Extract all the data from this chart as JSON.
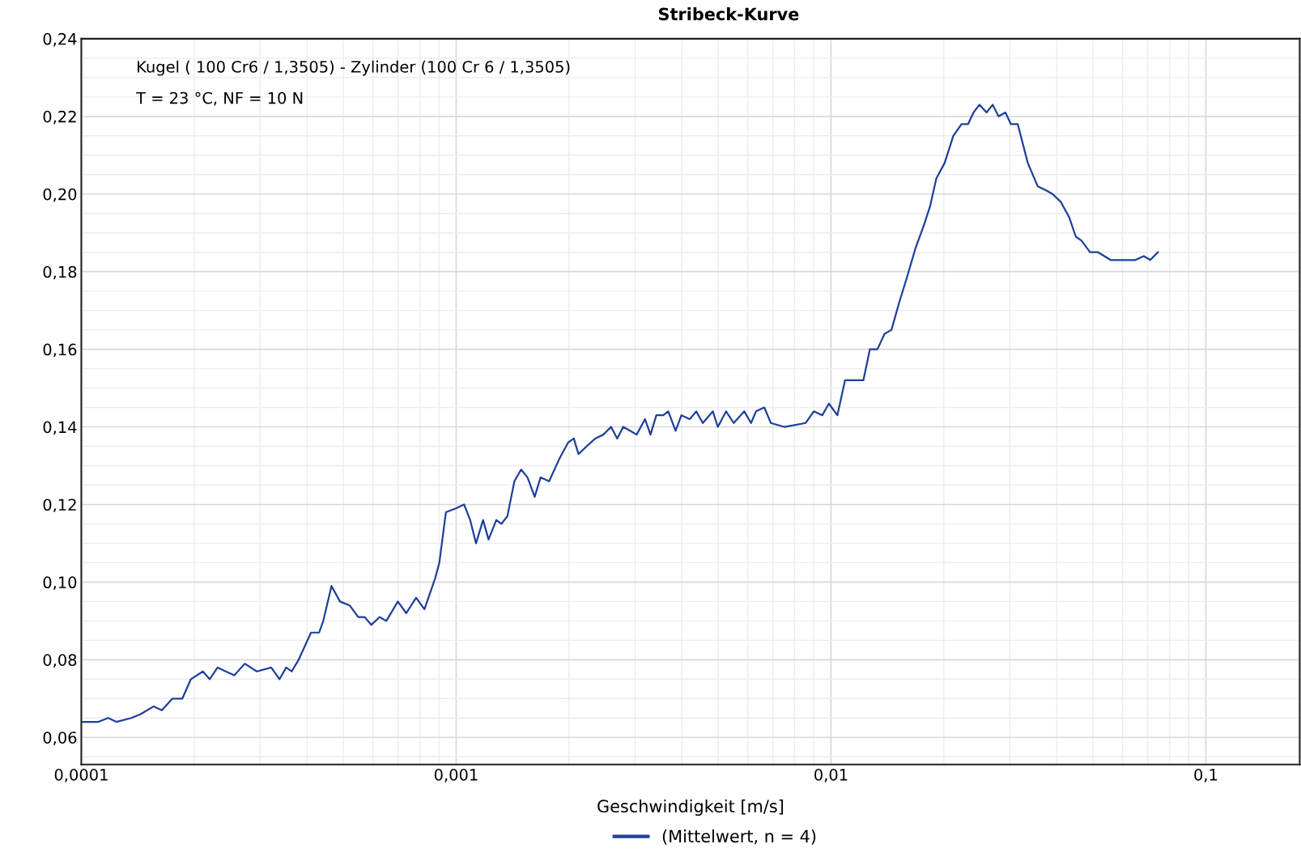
{
  "chart_data": {
    "type": "line",
    "title": "Stribeck-Kurve",
    "xlabel": "Geschwindigkeit [m/s]",
    "annotations": [
      "Kugel ( 100 Cr6 / 1,3505) - Zylinder (100 Cr 6 / 1,3505)",
      "T = 23 °C, NF = 10 N"
    ],
    "log": "x",
    "grid": true,
    "legend": "bottom",
    "marker": "none",
    "line_style": "solid",
    "xlim": [
      0.0001,
      0.178
    ],
    "ylim": [
      0.053,
      0.24
    ],
    "xticks": [
      {
        "value": 0.0001,
        "label": "0,0001"
      },
      {
        "value": 0.001,
        "label": "0,001"
      },
      {
        "value": 0.01,
        "label": "0,01"
      },
      {
        "value": 0.1,
        "label": "0,1"
      }
    ],
    "yticks": [
      {
        "value": 0.06,
        "label": "0,06"
      },
      {
        "value": 0.08,
        "label": "0,08"
      },
      {
        "value": 0.1,
        "label": "0,10"
      },
      {
        "value": 0.12,
        "label": "0,12"
      },
      {
        "value": 0.14,
        "label": "0,14"
      },
      {
        "value": 0.16,
        "label": "0,16"
      },
      {
        "value": 0.18,
        "label": "0,18"
      },
      {
        "value": 0.2,
        "label": "0,20"
      },
      {
        "value": 0.22,
        "label": "0,22"
      },
      {
        "value": 0.24,
        "label": "0,24"
      }
    ],
    "series": [
      {
        "name": "(Mittelwert, n = 4)",
        "color": "#1f3f99",
        "x": [
          0.0001,
          0.000111,
          0.000118,
          0.000124,
          0.000136,
          0.000144,
          0.000156,
          0.000164,
          0.000175,
          0.000186,
          0.000196,
          0.000211,
          0.00022,
          0.000231,
          0.000243,
          0.000256,
          0.000273,
          0.000294,
          0.000321,
          0.000338,
          0.000352,
          0.000364,
          0.00038,
          0.00041,
          0.000431,
          0.000442,
          0.000465,
          0.00049,
          0.00052,
          0.000548,
          0.00057,
          0.000594,
          0.000625,
          0.000651,
          0.000699,
          0.000736,
          0.000782,
          0.000823,
          0.000879,
          0.000902,
          0.000939,
          0.000998,
          0.00105,
          0.00109,
          0.00113,
          0.00118,
          0.00122,
          0.00128,
          0.00132,
          0.00137,
          0.00143,
          0.00149,
          0.00155,
          0.00162,
          0.00168,
          0.00177,
          0.00189,
          0.00199,
          0.00206,
          0.00212,
          0.00223,
          0.00235,
          0.00247,
          0.00259,
          0.00269,
          0.00279,
          0.00291,
          0.00303,
          0.00319,
          0.0033,
          0.00342,
          0.00357,
          0.00368,
          0.00385,
          0.00399,
          0.0042,
          0.00437,
          0.00455,
          0.00484,
          0.00499,
          0.00525,
          0.0055,
          0.00587,
          0.00612,
          0.00631,
          0.00664,
          0.00691,
          0.0075,
          0.00856,
          0.009,
          0.00948,
          0.00987,
          0.0104,
          0.0109,
          0.0115,
          0.0122,
          0.0127,
          0.0133,
          0.0139,
          0.0145,
          0.0152,
          0.016,
          0.0168,
          0.0177,
          0.0184,
          0.0191,
          0.0201,
          0.0212,
          0.0223,
          0.0232,
          0.024,
          0.0249,
          0.026,
          0.027,
          0.028,
          0.0292,
          0.0302,
          0.0315,
          0.0335,
          0.0356,
          0.0374,
          0.039,
          0.041,
          0.0432,
          0.045,
          0.0466,
          0.0491,
          0.0516,
          0.0557,
          0.0601,
          0.0649,
          0.0683,
          0.0711,
          0.0745
        ],
        "values": [
          0.064,
          0.064,
          0.065,
          0.064,
          0.065,
          0.066,
          0.068,
          0.067,
          0.07,
          0.07,
          0.075,
          0.077,
          0.075,
          0.078,
          0.077,
          0.076,
          0.079,
          0.077,
          0.078,
          0.075,
          0.078,
          0.077,
          0.08,
          0.087,
          0.087,
          0.09,
          0.099,
          0.095,
          0.094,
          0.091,
          0.091,
          0.089,
          0.091,
          0.09,
          0.095,
          0.092,
          0.096,
          0.093,
          0.101,
          0.105,
          0.118,
          0.119,
          0.12,
          0.116,
          0.11,
          0.116,
          0.111,
          0.116,
          0.115,
          0.117,
          0.126,
          0.129,
          0.127,
          0.122,
          0.127,
          0.126,
          0.132,
          0.136,
          0.137,
          0.133,
          0.135,
          0.137,
          0.138,
          0.14,
          0.137,
          0.14,
          0.139,
          0.138,
          0.142,
          0.138,
          0.143,
          0.143,
          0.144,
          0.139,
          0.143,
          0.142,
          0.144,
          0.141,
          0.144,
          0.14,
          0.144,
          0.141,
          0.144,
          0.141,
          0.144,
          0.145,
          0.141,
          0.14,
          0.141,
          0.144,
          0.143,
          0.146,
          0.143,
          0.152,
          0.152,
          0.152,
          0.16,
          0.16,
          0.164,
          0.165,
          0.172,
          0.179,
          0.186,
          0.192,
          0.197,
          0.204,
          0.208,
          0.215,
          0.218,
          0.218,
          0.221,
          0.223,
          0.221,
          0.223,
          0.22,
          0.221,
          0.218,
          0.218,
          0.208,
          0.202,
          0.201,
          0.2,
          0.198,
          0.194,
          0.189,
          0.188,
          0.185,
          0.185,
          0.183,
          0.183,
          0.183,
          0.184,
          0.183,
          0.185
        ]
      }
    ]
  }
}
